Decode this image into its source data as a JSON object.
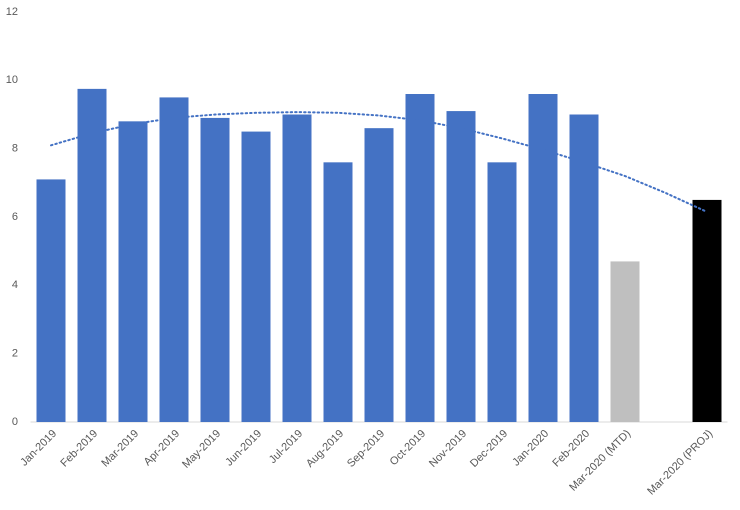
{
  "chart_data": {
    "type": "bar",
    "categories": [
      "Jan-2019",
      "Feb-2019",
      "Mar-2019",
      "Apr-2019",
      "May-2019",
      "Jun-2019",
      "Jul-2019",
      "Aug-2019",
      "Sep-2019",
      "Oct-2019",
      "Nov-2019",
      "Dec-2019",
      "Jan-2020",
      "Feb-2020",
      "Mar-2020 (MTD)",
      null,
      "Mar-2020 (PROJ)"
    ],
    "values": [
      7.1,
      9.75,
      8.8,
      9.5,
      8.9,
      8.5,
      9.0,
      7.6,
      8.6,
      9.6,
      9.1,
      7.6,
      9.6,
      9.0,
      4.7,
      null,
      6.5
    ],
    "colors": [
      "#4472c4",
      "#4472c4",
      "#4472c4",
      "#4472c4",
      "#4472c4",
      "#4472c4",
      "#4472c4",
      "#4472c4",
      "#4472c4",
      "#4472c4",
      "#4472c4",
      "#4472c4",
      "#4472c4",
      "#4472c4",
      "#bfbfbf",
      null,
      "#000000"
    ],
    "trendline": {
      "color": "#4472c4",
      "style": "dotted",
      "values": [
        8.1,
        8.45,
        8.72,
        8.9,
        9.0,
        9.05,
        9.07,
        9.05,
        8.97,
        8.83,
        8.6,
        8.3,
        7.97,
        7.6,
        7.2,
        6.7,
        6.15
      ]
    },
    "ylim": [
      0,
      12
    ],
    "yticks": [
      0,
      2,
      4,
      6,
      8,
      10,
      12
    ],
    "grid": false
  }
}
